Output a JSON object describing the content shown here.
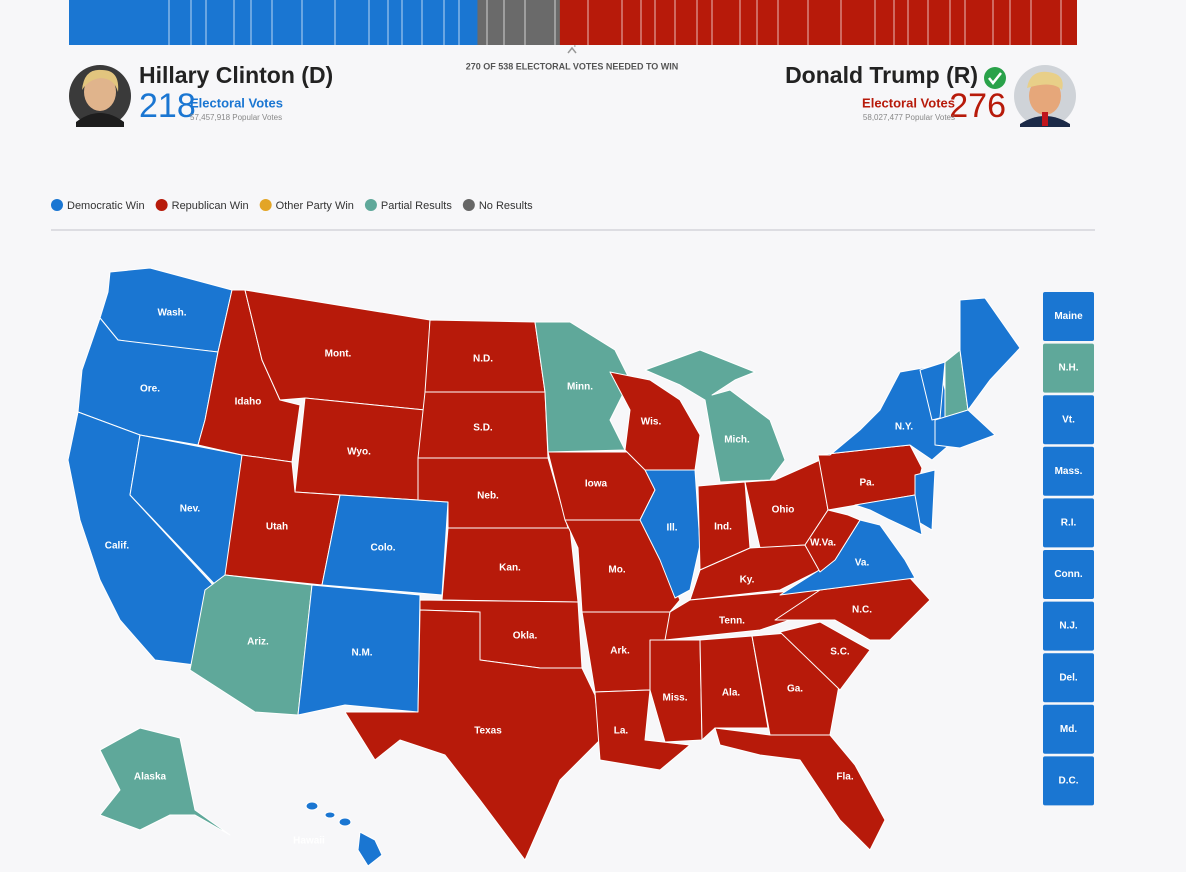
{
  "header": {
    "total_electoral_votes": 538,
    "needed_to_win": 270,
    "needed_text": "270 OF 538 ELECTORAL VOTES NEEDED TO WIN",
    "candidates": [
      {
        "name": "Hillary Clinton (D)",
        "electoral_votes": 218,
        "electoral_label": "Electoral Votes",
        "popular_votes": "57,457,918 Popular Votes",
        "color": "#1a76d2"
      },
      {
        "name": "Donald Trump (R)",
        "electoral_votes": 276,
        "electoral_label": "Electoral Votes",
        "popular_votes": "58,027,477 Popular Votes",
        "color": "#b71a0a"
      }
    ],
    "undecided_color": "#6a6a6a"
  },
  "legend": [
    {
      "label": "Democratic Win",
      "color": "#1a76d2"
    },
    {
      "label": "Republican Win",
      "color": "#b71a0a"
    },
    {
      "label": "Other Party Win",
      "color": "#e3a526"
    },
    {
      "label": "Partial Results",
      "color": "#5fa89a"
    },
    {
      "label": "No Results",
      "color": "#666666"
    }
  ],
  "states": [
    {
      "label": "Wash.",
      "result": "Democratic Win"
    },
    {
      "label": "Ore.",
      "result": "Democratic Win"
    },
    {
      "label": "Calif.",
      "result": "Democratic Win"
    },
    {
      "label": "Nev.",
      "result": "Democratic Win"
    },
    {
      "label": "Idaho",
      "result": "Republican Win"
    },
    {
      "label": "Mont.",
      "result": "Republican Win"
    },
    {
      "label": "Wyo.",
      "result": "Republican Win"
    },
    {
      "label": "Utah",
      "result": "Republican Win"
    },
    {
      "label": "Colo.",
      "result": "Democratic Win"
    },
    {
      "label": "Ariz.",
      "result": "Partial Results"
    },
    {
      "label": "N.M.",
      "result": "Democratic Win"
    },
    {
      "label": "N.D.",
      "result": "Republican Win"
    },
    {
      "label": "S.D.",
      "result": "Republican Win"
    },
    {
      "label": "Neb.",
      "result": "Republican Win"
    },
    {
      "label": "Kan.",
      "result": "Republican Win"
    },
    {
      "label": "Okla.",
      "result": "Republican Win"
    },
    {
      "label": "Texas",
      "result": "Republican Win"
    },
    {
      "label": "Minn.",
      "result": "Partial Results"
    },
    {
      "label": "Iowa",
      "result": "Republican Win"
    },
    {
      "label": "Mo.",
      "result": "Republican Win"
    },
    {
      "label": "Ark.",
      "result": "Republican Win"
    },
    {
      "label": "La.",
      "result": "Republican Win"
    },
    {
      "label": "Wis.",
      "result": "Republican Win"
    },
    {
      "label": "Ill.",
      "result": "Democratic Win"
    },
    {
      "label": "Mich.",
      "result": "Partial Results"
    },
    {
      "label": "Ind.",
      "result": "Republican Win"
    },
    {
      "label": "Ohio",
      "result": "Republican Win"
    },
    {
      "label": "Ky.",
      "result": "Republican Win"
    },
    {
      "label": "Tenn.",
      "result": "Republican Win"
    },
    {
      "label": "Miss.",
      "result": "Republican Win"
    },
    {
      "label": "Ala.",
      "result": "Republican Win"
    },
    {
      "label": "Ga.",
      "result": "Republican Win"
    },
    {
      "label": "Fla.",
      "result": "Republican Win"
    },
    {
      "label": "S.C.",
      "result": "Republican Win"
    },
    {
      "label": "N.C.",
      "result": "Republican Win"
    },
    {
      "label": "Va.",
      "result": "Democratic Win"
    },
    {
      "label": "W.Va.",
      "result": "Republican Win"
    },
    {
      "label": "Pa.",
      "result": "Republican Win"
    },
    {
      "label": "N.Y.",
      "result": "Democratic Win"
    },
    {
      "label": "Alaska",
      "result": "Partial Results"
    },
    {
      "label": "Hawaii",
      "result": "Democratic Win"
    }
  ],
  "small_states": [
    {
      "label": "Maine",
      "result": "Democratic Win"
    },
    {
      "label": "N.H.",
      "result": "Partial Results"
    },
    {
      "label": "Vt.",
      "result": "Democratic Win"
    },
    {
      "label": "Mass.",
      "result": "Democratic Win"
    },
    {
      "label": "R.I.",
      "result": "Democratic Win"
    },
    {
      "label": "Conn.",
      "result": "Democratic Win"
    },
    {
      "label": "N.J.",
      "result": "Democratic Win"
    },
    {
      "label": "Del.",
      "result": "Democratic Win"
    },
    {
      "label": "Md.",
      "result": "Democratic Win"
    },
    {
      "label": "D.C.",
      "result": "Democratic Win"
    }
  ]
}
